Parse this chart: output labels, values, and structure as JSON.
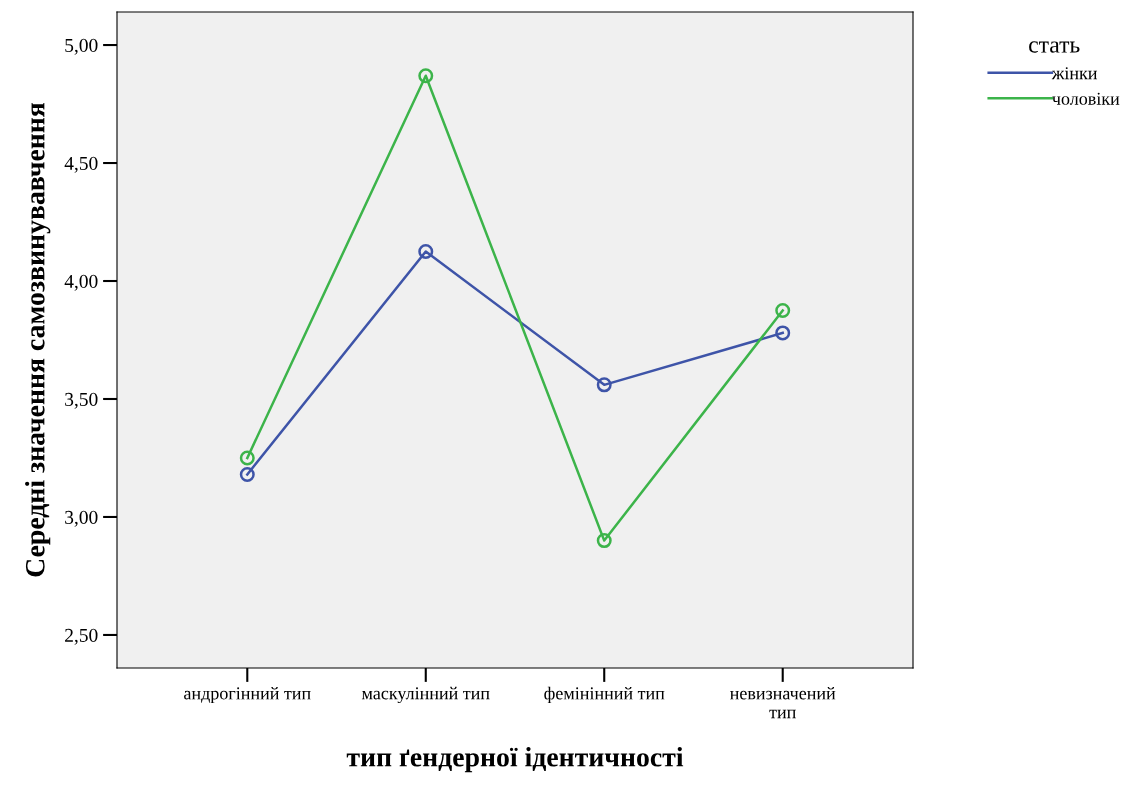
{
  "chart_data": {
    "type": "line",
    "xlabel": "тип ґендерної ідентичності",
    "ylabel": "Середні значення самозвинувавчення",
    "legend_title": "стать",
    "categories": [
      "андрогінний тип",
      "маскулінний тип",
      "фемінінний тип",
      "невизначений\nтип"
    ],
    "series": [
      {
        "name": "жінки",
        "color": "#3e54a8",
        "values": [
          3.18,
          4.125,
          3.56,
          3.78
        ]
      },
      {
        "name": "чоловіки",
        "color": "#3cb44a",
        "values": [
          3.25,
          4.87,
          2.9,
          3.875
        ]
      }
    ],
    "ylim": [
      2.36,
      5.14
    ],
    "yticks": [
      {
        "value": 2.5,
        "label": "2,50"
      },
      {
        "value": 3.0,
        "label": "3,00"
      },
      {
        "value": 3.5,
        "label": "3,50"
      },
      {
        "value": 4.0,
        "label": "4,00"
      },
      {
        "value": 4.5,
        "label": "4,50"
      },
      {
        "value": 5.0,
        "label": "5,00"
      }
    ],
    "marker": "circle",
    "line_style": "solid",
    "grid": false,
    "legend": "top right"
  }
}
